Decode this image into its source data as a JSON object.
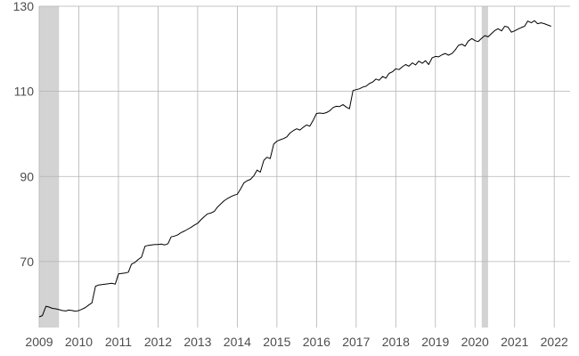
{
  "chart_data": {
    "type": "line",
    "title": "",
    "xlabel": "",
    "ylabel": "",
    "xlim": [
      2009.0,
      2022.4
    ],
    "ylim": [
      54.5,
      130
    ],
    "x_ticks": [
      2009,
      2010,
      2011,
      2012,
      2013,
      2014,
      2015,
      2016,
      2017,
      2018,
      2019,
      2020,
      2021,
      2022
    ],
    "y_ticks": [
      70,
      90,
      110,
      130
    ],
    "grid": true,
    "legend": "none",
    "colors": {
      "line": "#000000",
      "shade": "#d3d3d3",
      "grid": "#b3b3b3"
    },
    "shaded_periods": [
      {
        "start": 2009.0,
        "end": 2009.5
      },
      {
        "start": 2020.17,
        "end": 2020.33
      }
    ],
    "series": [
      {
        "x": [
          2009.0,
          2009.08,
          2009.17,
          2009.25,
          2009.33,
          2009.42,
          2009.5,
          2009.58,
          2009.67,
          2009.75,
          2009.83,
          2009.92,
          2010.0,
          2010.08,
          2010.17,
          2010.25,
          2010.33,
          2010.42,
          2010.5,
          2010.58,
          2010.67,
          2010.75,
          2010.83,
          2010.92,
          2011.0,
          2011.08,
          2011.17,
          2011.25,
          2011.33,
          2011.42,
          2011.5,
          2011.58,
          2011.67,
          2011.75,
          2011.83,
          2011.92,
          2012.0,
          2012.08,
          2012.17,
          2012.25,
          2012.33,
          2012.42,
          2012.5,
          2012.58,
          2012.67,
          2012.75,
          2012.83,
          2012.92,
          2013.0,
          2013.08,
          2013.17,
          2013.25,
          2013.33,
          2013.42,
          2013.5,
          2013.58,
          2013.67,
          2013.75,
          2013.83,
          2013.92,
          2014.0,
          2014.08,
          2014.17,
          2014.25,
          2014.33,
          2014.42,
          2014.5,
          2014.58,
          2014.67,
          2014.75,
          2014.83,
          2014.92,
          2015.0,
          2015.08,
          2015.17,
          2015.25,
          2015.33,
          2015.42,
          2015.5,
          2015.58,
          2015.67,
          2015.75,
          2015.83,
          2015.92,
          2016.0,
          2016.08,
          2016.17,
          2016.25,
          2016.33,
          2016.42,
          2016.5,
          2016.58,
          2016.67,
          2016.75,
          2016.83,
          2016.92,
          2017.0,
          2017.08,
          2017.17,
          2017.25,
          2017.33,
          2017.42,
          2017.5,
          2017.58,
          2017.67,
          2017.75,
          2017.83,
          2017.92,
          2018.0,
          2018.08,
          2018.17,
          2018.25,
          2018.33,
          2018.42,
          2018.5,
          2018.58,
          2018.67,
          2018.75,
          2018.83,
          2018.92,
          2019.0,
          2019.08,
          2019.17,
          2019.25,
          2019.33,
          2019.42,
          2019.5,
          2019.58,
          2019.67,
          2019.75,
          2019.83,
          2019.92,
          2020.0,
          2020.08,
          2020.17,
          2020.25,
          2020.33,
          2020.42,
          2020.5,
          2020.58,
          2020.67,
          2020.75,
          2020.83,
          2020.92,
          2021.0,
          2021.08,
          2021.17,
          2021.25,
          2021.33,
          2021.42,
          2021.5,
          2021.58,
          2021.67,
          2021.75,
          2021.83,
          2021.92
        ],
        "y": [
          57.0,
          57.3,
          59.5,
          59.3,
          59.0,
          58.9,
          58.7,
          58.5,
          58.4,
          58.6,
          58.5,
          58.3,
          58.5,
          58.8,
          59.2,
          59.8,
          60.3,
          64.2,
          64.5,
          64.6,
          64.7,
          64.8,
          64.9,
          64.7,
          67.1,
          67.2,
          67.3,
          67.5,
          69.4,
          69.8,
          70.5,
          71.0,
          73.6,
          73.8,
          73.9,
          74.0,
          74.0,
          74.1,
          73.9,
          74.2,
          75.8,
          76.0,
          76.3,
          76.8,
          77.2,
          77.6,
          78.0,
          78.6,
          79.0,
          79.8,
          80.6,
          81.2,
          81.4,
          81.8,
          82.8,
          83.5,
          84.3,
          84.8,
          85.2,
          85.6,
          85.8,
          87.0,
          88.5,
          89.0,
          89.3,
          90.2,
          91.5,
          91.0,
          93.8,
          94.5,
          94.2,
          97.6,
          98.3,
          98.6,
          98.9,
          99.3,
          100.2,
          100.8,
          101.2,
          100.9,
          101.6,
          102.1,
          101.8,
          103.3,
          104.8,
          104.9,
          104.8,
          105.0,
          105.4,
          106.2,
          106.5,
          106.4,
          106.9,
          106.3,
          105.9,
          110.2,
          110.4,
          110.6,
          111.0,
          111.2,
          111.8,
          112.2,
          112.9,
          112.6,
          113.5,
          113.1,
          114.2,
          114.6,
          115.3,
          115.1,
          115.8,
          116.3,
          115.9,
          116.7,
          116.2,
          117.1,
          116.6,
          117.2,
          116.3,
          117.9,
          118.2,
          118.1,
          118.6,
          118.9,
          118.5,
          118.9,
          119.7,
          120.8,
          121.1,
          120.6,
          121.8,
          122.4,
          121.9,
          121.7,
          122.5,
          123.1,
          122.8,
          123.6,
          124.3,
          124.7,
          124.2,
          125.3,
          125.1,
          123.9,
          124.2,
          124.6,
          125.0,
          125.3,
          126.5,
          126.1,
          126.6,
          125.9,
          126.1,
          125.9,
          125.6,
          125.3
        ]
      }
    ]
  }
}
